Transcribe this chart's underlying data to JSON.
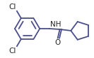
{
  "line_color": "#4a4e8c",
  "bg_color": "#ffffff",
  "line_width": 1.3,
  "figsize": [
    1.33,
    0.83
  ],
  "dpi": 100,
  "cl1_label": "Cl",
  "cl2_label": "Cl",
  "nh_label": "NH",
  "o_label": "O",
  "font_size": 7.5,
  "text_color": "#222222"
}
